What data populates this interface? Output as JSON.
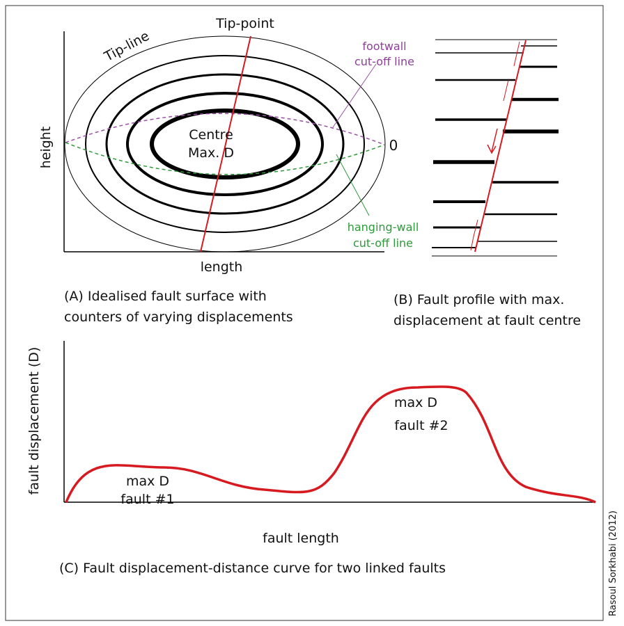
{
  "panel_a": {
    "tip_point": "Tip-point",
    "tip_line": "Tip-line",
    "footwall": [
      "footwall",
      "cut-off line"
    ],
    "centre": [
      "Centre",
      "Max. D"
    ],
    "zero": "0",
    "hanging_wall": [
      "hanging-wall",
      "cut-off line"
    ],
    "y_label": "height",
    "x_label": "length",
    "caption": [
      "(A) Idealised fault surface  with",
      "counters of varying displacements"
    ]
  },
  "panel_b": {
    "caption": [
      "(B) Fault profile with max.",
      "displacement at fault centre"
    ]
  },
  "panel_c": {
    "y_label": "fault displacement (D)",
    "x_label": "fault length",
    "peak_1": [
      "max D",
      "fault #1"
    ],
    "peak_2": [
      "max D",
      "fault #2"
    ],
    "caption": "(C) Fault displacement-distance curve for two linked faults"
  },
  "credit": "Rasoul Sorkhabi (2012)"
}
